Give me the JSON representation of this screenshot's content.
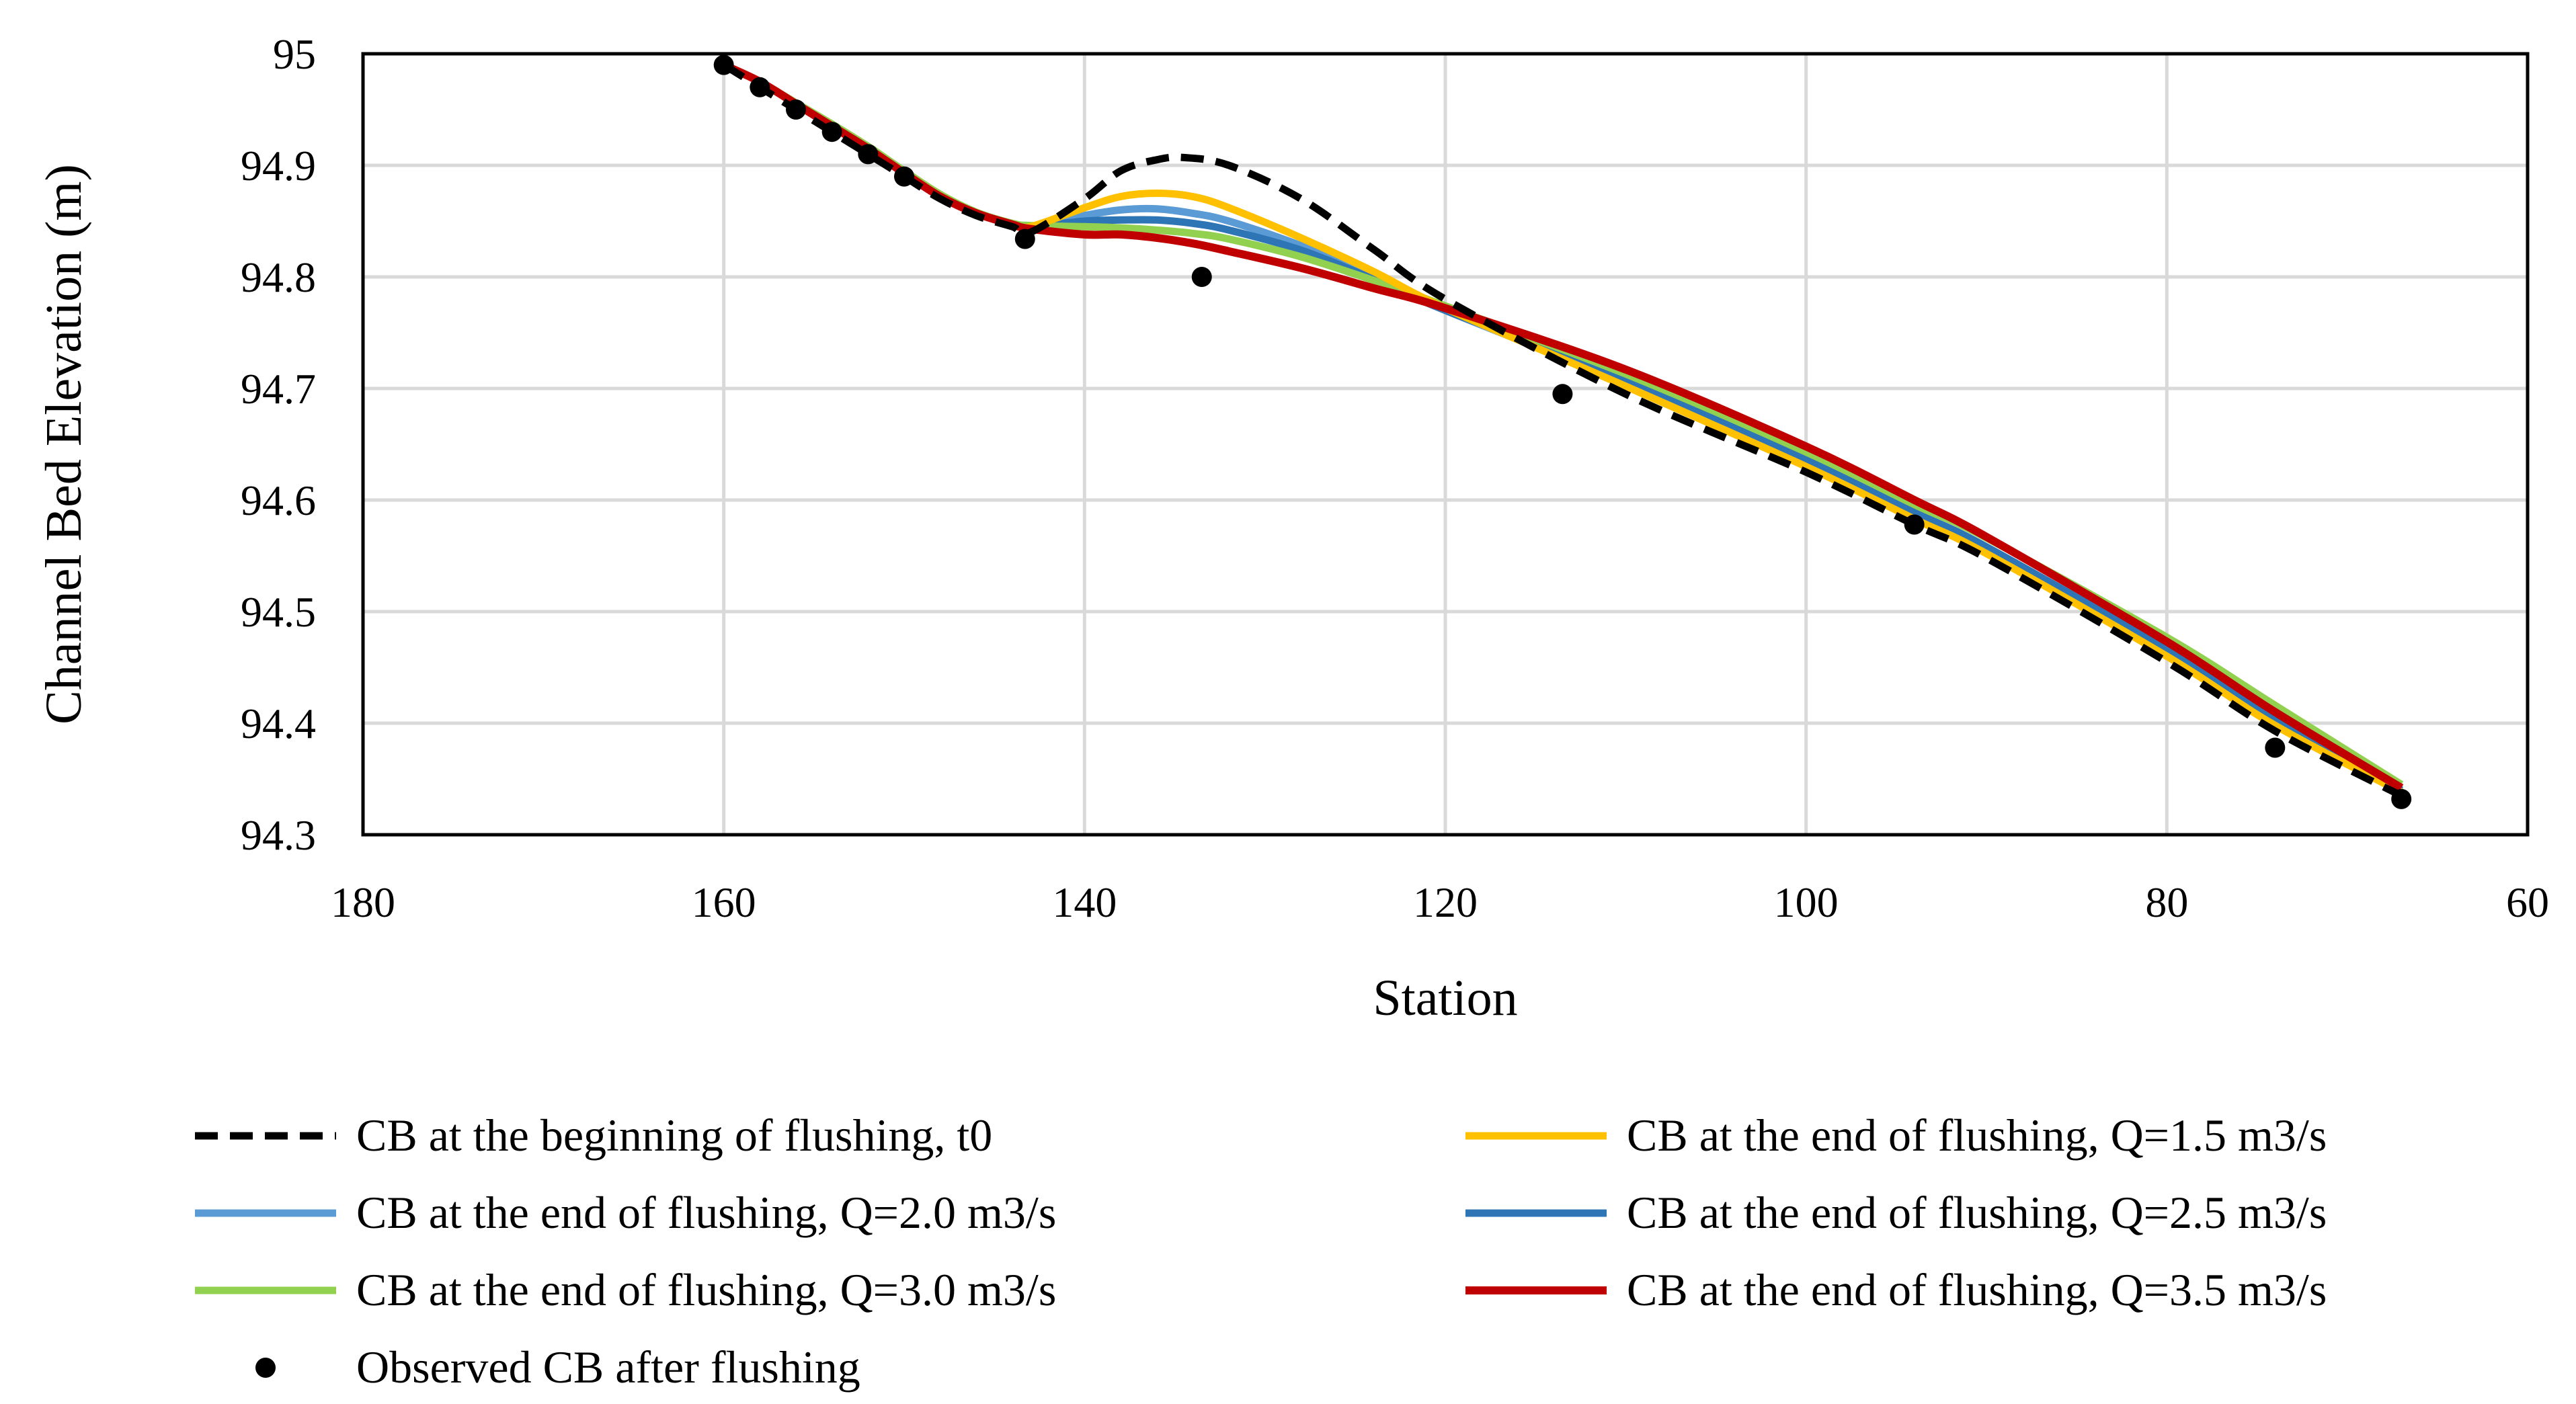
{
  "chart_data": {
    "type": "line",
    "title": "",
    "xlabel": "Station",
    "ylabel": "Channel Bed Elevation (m)",
    "xlim": [
      180,
      60
    ],
    "x_reversed": true,
    "ylim": [
      94.3,
      95.0
    ],
    "x_ticks": [
      180,
      160,
      140,
      120,
      100,
      80,
      60
    ],
    "y_ticks": [
      94.3,
      94.4,
      94.5,
      94.6,
      94.7,
      94.8,
      94.9,
      95.0
    ],
    "x_tick_labels": [
      "180",
      "160",
      "140",
      "120",
      "100",
      "80",
      "60"
    ],
    "y_tick_labels": [
      "94.3",
      "94.4",
      "94.5",
      "94.6",
      "94.7",
      "94.8",
      "94.9",
      "95"
    ],
    "grid": true,
    "legend_position": "bottom",
    "series": [
      {
        "name": "CB at the beginning of flushing, t0",
        "color": "#000000",
        "dash": true,
        "width": 11,
        "x": [
          160,
          158,
          156,
          154,
          152,
          150,
          148,
          146,
          144,
          143,
          140,
          138,
          136,
          134.5,
          132,
          128,
          124,
          120,
          110,
          100,
          94,
          90,
          80,
          74,
          67
        ],
        "y": [
          94.99,
          94.97,
          94.95,
          94.93,
          94.91,
          94.89,
          94.87,
          94.855,
          94.845,
          94.84,
          94.87,
          94.895,
          94.905,
          94.907,
          94.9,
          94.87,
          94.825,
          94.78,
          94.695,
          94.625,
          94.578,
          94.548,
          94.455,
          94.393,
          94.335
        ]
      },
      {
        "name": "CB at the end of flushing, Q=1.5 m3/s",
        "color": "#FFC000",
        "dash": false,
        "width": 11,
        "x": [
          160,
          158,
          156,
          154,
          152,
          150,
          148,
          146,
          144,
          143,
          140,
          138,
          136,
          134,
          132,
          128,
          124,
          120,
          110,
          100,
          94,
          90,
          80,
          74,
          67
        ],
        "y": [
          94.99,
          94.975,
          94.955,
          94.935,
          94.915,
          94.893,
          94.872,
          94.857,
          94.847,
          94.845,
          94.862,
          94.872,
          94.875,
          94.872,
          94.862,
          94.835,
          94.805,
          94.772,
          94.702,
          94.63,
          94.583,
          94.552,
          94.46,
          94.398,
          94.338
        ]
      },
      {
        "name": "CB at the end of flushing, Q=2.0 m3/s",
        "color": "#5B9BD5",
        "dash": false,
        "width": 11,
        "x": [
          160,
          158,
          156,
          154,
          152,
          150,
          148,
          146,
          144,
          143,
          140,
          138,
          136,
          134,
          132,
          128,
          124,
          120,
          110,
          100,
          94,
          90,
          80,
          74,
          67
        ],
        "y": [
          94.99,
          94.975,
          94.955,
          94.935,
          94.915,
          94.893,
          94.872,
          94.857,
          94.847,
          94.845,
          94.855,
          94.86,
          94.861,
          94.857,
          94.85,
          94.828,
          94.8,
          94.77,
          94.705,
          94.633,
          94.586,
          94.555,
          94.463,
          94.401,
          94.339
        ]
      },
      {
        "name": "CB at the end of flushing, Q=2.5 m3/s",
        "color": "#2E75B6",
        "dash": false,
        "width": 11,
        "x": [
          160,
          158,
          156,
          154,
          152,
          150,
          148,
          146,
          144,
          143,
          140,
          138,
          136,
          134,
          132,
          128,
          124,
          120,
          110,
          100,
          94,
          90,
          80,
          74,
          67
        ],
        "y": [
          94.99,
          94.975,
          94.955,
          94.935,
          94.915,
          94.893,
          94.872,
          94.857,
          94.847,
          94.845,
          94.85,
          94.851,
          94.851,
          94.848,
          94.842,
          94.824,
          94.798,
          94.77,
          94.708,
          94.636,
          94.589,
          94.558,
          94.466,
          94.405,
          94.34
        ]
      },
      {
        "name": "CB at the end of flushing, Q=3.0 m3/s",
        "color": "#92D050",
        "dash": false,
        "width": 11,
        "x": [
          160,
          158,
          156,
          154,
          152,
          150,
          148,
          146,
          144,
          143,
          140,
          138,
          136,
          134,
          132,
          128,
          124,
          120,
          110,
          100,
          94,
          90,
          80,
          74,
          67
        ],
        "y": [
          94.99,
          94.975,
          94.956,
          94.937,
          94.917,
          94.895,
          94.874,
          94.858,
          94.848,
          94.846,
          94.845,
          94.844,
          94.842,
          94.839,
          94.834,
          94.818,
          94.797,
          94.774,
          94.713,
          94.643,
          94.596,
          94.566,
          94.477,
          94.416,
          94.345
        ]
      },
      {
        "name": "CB at the end of flushing, Q=3.5 m3/s",
        "color": "#C00000",
        "dash": false,
        "width": 12,
        "x": [
          160,
          158,
          156,
          154,
          152,
          150,
          148,
          146,
          144,
          143,
          140,
          138,
          136,
          134,
          132,
          128,
          124,
          120,
          110,
          100,
          94,
          90,
          80,
          74,
          67
        ],
        "y": [
          94.99,
          94.975,
          94.955,
          94.935,
          94.915,
          94.893,
          94.872,
          94.857,
          94.847,
          94.843,
          94.838,
          94.838,
          94.835,
          94.83,
          94.823,
          94.808,
          94.79,
          94.772,
          94.717,
          94.648,
          94.6,
          94.567,
          94.473,
          94.41,
          94.342
        ]
      },
      {
        "name": "Observed CB after flushing",
        "color": "#000000",
        "type": "scatter",
        "x": [
          160,
          158,
          156,
          154,
          152,
          150,
          143.3,
          133.5,
          113.5,
          94,
          74,
          67
        ],
        "y": [
          94.99,
          94.97,
          94.95,
          94.93,
          94.91,
          94.89,
          94.834,
          94.8,
          94.695,
          94.578,
          94.378,
          94.332
        ]
      }
    ]
  }
}
